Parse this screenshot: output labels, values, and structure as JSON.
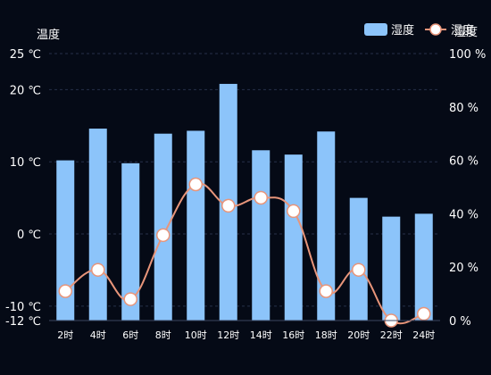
{
  "chart_data": {
    "type": "bar",
    "categories": [
      "2时",
      "4时",
      "6时",
      "8时",
      "10时",
      "12时",
      "14时",
      "16时",
      "18时",
      "20时",
      "22时",
      "24时"
    ],
    "left_axis": {
      "title": "温度",
      "ylim": [
        -12,
        25
      ],
      "ticks": [
        -12,
        -10,
        0,
        10,
        20,
        25
      ],
      "tick_labels": [
        "-12 ℃",
        "-10 ℃",
        "0 ℃",
        "10 ℃",
        "20 ℃",
        "25 ℃"
      ]
    },
    "right_axis": {
      "title": "湿度",
      "ylim": [
        0,
        100
      ],
      "ticks": [
        0,
        20,
        40,
        60,
        80,
        100
      ],
      "tick_labels": [
        "0 %",
        "20 %",
        "40 %",
        "60 %",
        "80 %",
        "100 %"
      ]
    },
    "series": [
      {
        "name": "湿度",
        "type": "bar",
        "axis": "left",
        "color": "#8cc4fa",
        "values": [
          10.2,
          14.6,
          9.8,
          13.9,
          14.3,
          20.8,
          11.6,
          11.0,
          14.2,
          5.0,
          2.4,
          2.8
        ]
      },
      {
        "name": "湿度",
        "type": "line",
        "axis": "right",
        "color": "#e8957a",
        "values": [
          11,
          19,
          8,
          32,
          51,
          43,
          46,
          41,
          11,
          19,
          0,
          2.5
        ]
      }
    ],
    "legend": [
      "湿度",
      "湿度"
    ],
    "legend_position": "top-right",
    "grid": "dashed-horizontal"
  }
}
